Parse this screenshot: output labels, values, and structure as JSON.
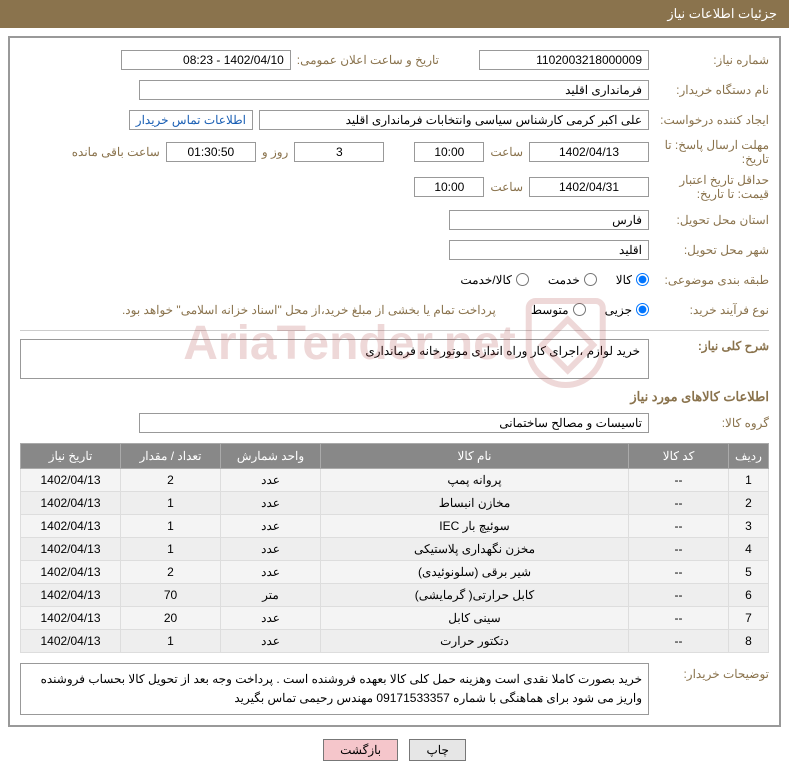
{
  "header": {
    "title": "جزئیات اطلاعات نیاز"
  },
  "labels": {
    "need_number": "شماره نیاز:",
    "announce_datetime": "تاریخ و ساعت اعلان عمومی:",
    "buyer_org": "نام دستگاه خریدار:",
    "requester": "ایجاد کننده درخواست:",
    "contact_link": "اطلاعات تماس خریدار",
    "deadline": "مهلت ارسال پاسخ: تا تاریخ:",
    "time": "ساعت",
    "days_and": "روز و",
    "time_left": "ساعت باقی مانده",
    "price_validity": "حداقل تاریخ اعتبار قیمت: تا تاریخ:",
    "province": "استان محل تحویل:",
    "city": "شهر محل تحویل:",
    "category": "طبقه بندی موضوعی:",
    "purchase_type": "نوع فرآیند خرید:",
    "payment_note": "پرداخت تمام یا بخشی از مبلغ خرید،از محل \"اسناد خزانه اسلامی\" خواهد بود.",
    "overall_desc": "شرح کلی نیاز:",
    "goods_info": "اطلاعات کالاهای مورد نیاز",
    "goods_group": "گروه کالا:",
    "buyer_notes": "توضیحات خریدار:"
  },
  "values": {
    "need_number": "1102003218000009",
    "announce_datetime": "1402/04/10 - 08:23",
    "buyer_org": "فرمانداری اقلید",
    "requester": "علی اکبر کرمی کارشناس سیاسی وانتخابات فرمانداری اقلید",
    "deadline_date": "1402/04/13",
    "deadline_time": "10:00",
    "days_remaining": "3",
    "time_remaining": "01:30:50",
    "price_validity_date": "1402/04/31",
    "price_validity_time": "10:00",
    "province": "فارس",
    "city": "اقلید",
    "overall_desc": "خرید لوازم ،اجرای کار وراه اندازی موتورخانه  فرمانداری",
    "goods_group": "تاسیسات و مصالح ساختمانی",
    "buyer_notes": "خرید بصورت کاملا نقدی است وهزینه حمل کلی کالا بعهده فروشنده است . پرداخت وجه بعد از تحویل کالا بحساب فروشنده واریز می شود برای هماهنگی با شماره 09171533357 مهندس رحیمی تماس بگیرید"
  },
  "radios": {
    "category": [
      {
        "label": "کالا",
        "checked": true
      },
      {
        "label": "خدمت",
        "checked": false
      },
      {
        "label": "کالا/خدمت",
        "checked": false
      }
    ],
    "purchase_type": [
      {
        "label": "جزیی",
        "checked": true
      },
      {
        "label": "متوسط",
        "checked": false
      }
    ]
  },
  "table": {
    "headers": [
      "ردیف",
      "کد کالا",
      "نام کالا",
      "واحد شمارش",
      "تعداد / مقدار",
      "تاریخ نیاز"
    ],
    "col_widths": [
      "40px",
      "100px",
      "auto",
      "100px",
      "100px",
      "100px"
    ],
    "rows": [
      [
        "1",
        "--",
        "پروانه پمپ",
        "عدد",
        "2",
        "1402/04/13"
      ],
      [
        "2",
        "--",
        "مخازن انبساط",
        "عدد",
        "1",
        "1402/04/13"
      ],
      [
        "3",
        "--",
        "سوئیچ بار IEC",
        "عدد",
        "1",
        "1402/04/13"
      ],
      [
        "4",
        "--",
        "مخزن نگهداری پلاستیکی",
        "عدد",
        "1",
        "1402/04/13"
      ],
      [
        "5",
        "--",
        "شیر برقی (سلونوئیدی)",
        "عدد",
        "2",
        "1402/04/13"
      ],
      [
        "6",
        "--",
        "کابل حرارتی( گرمایشی)",
        "متر",
        "70",
        "1402/04/13"
      ],
      [
        "7",
        "--",
        "سینی کابل",
        "عدد",
        "20",
        "1402/04/13"
      ],
      [
        "8",
        "--",
        "دتکتور حرارت",
        "عدد",
        "1",
        "1402/04/13"
      ]
    ]
  },
  "buttons": {
    "print": "چاپ",
    "back": "بازگشت"
  },
  "watermark": "AriaTender.net"
}
